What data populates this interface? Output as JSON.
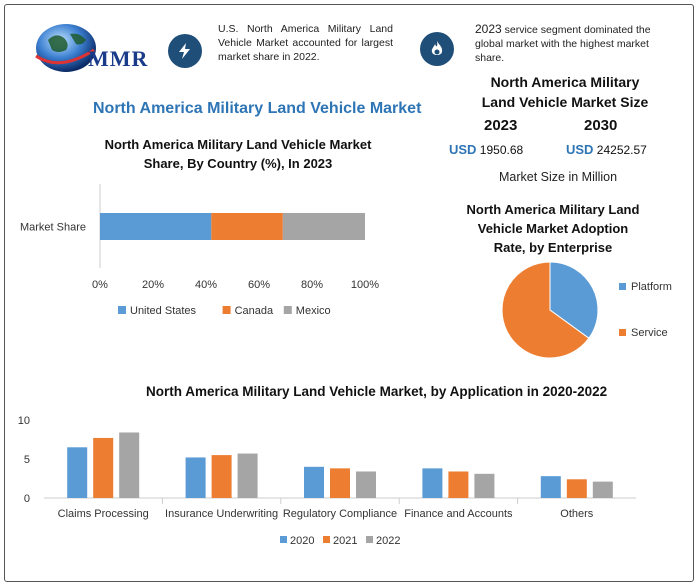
{
  "header": {
    "logo_text": "MMR",
    "callout_left": "U.S. North America Military Land Vehicle Market accounted for largest market share in 2022.",
    "callout_right_year": "2023",
    "callout_right_text": "service segment dominated the global market with the highest market share.",
    "icon_left": "lightning-icon",
    "icon_right": "flame-icon"
  },
  "main_title": "North America Military Land Vehicle Market",
  "market_size": {
    "title_line1": "North America Military",
    "title_line2": "Land Vehicle Market Size",
    "year1": "2023",
    "year2": "2030",
    "currency": "USD",
    "value1": "1950.68",
    "value2": "24252.57",
    "unit": "Market Size in Million"
  },
  "colors": {
    "blue": "#5b9bd5",
    "orange": "#ed7d31",
    "gray": "#a5a5a5",
    "accent": "#2e75b6"
  },
  "chart_data": [
    {
      "type": "bar",
      "orientation": "horizontal-stacked",
      "title_line1": "North America Military Land Vehicle Market",
      "title_line2": "Share, By Country (%), In 2023",
      "categories": [
        "Market Share"
      ],
      "series": [
        {
          "name": "United States",
          "values": [
            42
          ]
        },
        {
          "name": "Canada",
          "values": [
            27
          ]
        },
        {
          "name": "Mexico",
          "values": [
            31
          ]
        }
      ],
      "xticks": [
        "0%",
        "20%",
        "40%",
        "60%",
        "80%",
        "100%"
      ],
      "xlim": [
        0,
        100
      ],
      "legend": "bottom"
    },
    {
      "type": "pie",
      "title_line1": "North America Military Land",
      "title_line2": "Vehicle Market Adoption",
      "title_line3": "Rate, by Enterprise",
      "slices": [
        {
          "name": "Platform",
          "value": 35
        },
        {
          "name": "Service",
          "value": 65
        }
      ],
      "legend": "right"
    },
    {
      "type": "bar",
      "title": "North America Military Land Vehicle Market, by Application in 2020-2022",
      "categories": [
        "Claims Processing",
        "Insurance Underwriting",
        "Regulatory Compliance",
        "Finance and Accounts",
        "Others"
      ],
      "series": [
        {
          "name": "2020",
          "values": [
            6.5,
            5.2,
            4.0,
            3.8,
            2.8
          ]
        },
        {
          "name": "2021",
          "values": [
            7.7,
            5.5,
            3.8,
            3.4,
            2.4
          ]
        },
        {
          "name": "2022",
          "values": [
            8.4,
            5.7,
            3.4,
            3.1,
            2.1
          ]
        }
      ],
      "yticks": [
        "0",
        "5",
        "10"
      ],
      "ylim": [
        0,
        10
      ],
      "legend": "bottom"
    }
  ]
}
